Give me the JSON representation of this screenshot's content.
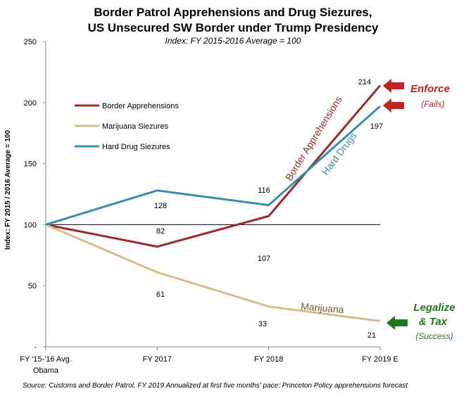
{
  "chart_data": {
    "type": "line",
    "title_line1": "Border Patrol Apprehensions and Drug Siezures,",
    "title_line2": "US Unsecured SW Border under Trump Presidency",
    "subtitle": "Index: FY 2015-2016  Average = 100",
    "ylabel": "Index: FY 2015 / 2016 Average = 100",
    "ylim": [
      0,
      250
    ],
    "yticks": [
      "250",
      "200",
      "150",
      "100",
      "50",
      "-"
    ],
    "ytick_values": [
      250,
      200,
      150,
      100,
      50,
      0
    ],
    "categories": [
      "FY '15-'16 Avg.",
      "FY 2017",
      "FY 2018",
      "FY 2019 E"
    ],
    "category_sublabel": "Obama",
    "reference_value": 100,
    "legend_position": "upper-left",
    "series": [
      {
        "name": "Border Apprehensions",
        "color": "#9b2b2b",
        "values": [
          100,
          82,
          107,
          214
        ],
        "labels": [
          "",
          "82",
          "107",
          "214"
        ],
        "annotation": "Border Apprehensions"
      },
      {
        "name": "Marijuana Siezures",
        "color": "#d4bc8e",
        "values": [
          100,
          61,
          33,
          21
        ],
        "labels": [
          "",
          "61",
          "33",
          "21"
        ],
        "annotation": "Marijuana"
      },
      {
        "name": "Hard Drug Siezures",
        "color": "#3a8fa8",
        "values": [
          100,
          128,
          116,
          197
        ],
        "labels": [
          "",
          "128",
          "116",
          "197"
        ],
        "annotation": "Hard Drugs"
      }
    ],
    "callouts": {
      "enforce": "Enforce",
      "enforce_sub": "(Fails)",
      "legalize": "Legalize",
      "tax": "&  Tax",
      "legalize_sub": "(Success)",
      "enforce_color": "#c0241f",
      "legalize_color": "#1e7a1e"
    },
    "source": "Source:  Customs and Border Patrol,  FY 2019 Annualized at first five months' pace; Princeton Policy apprehensions forecast"
  }
}
